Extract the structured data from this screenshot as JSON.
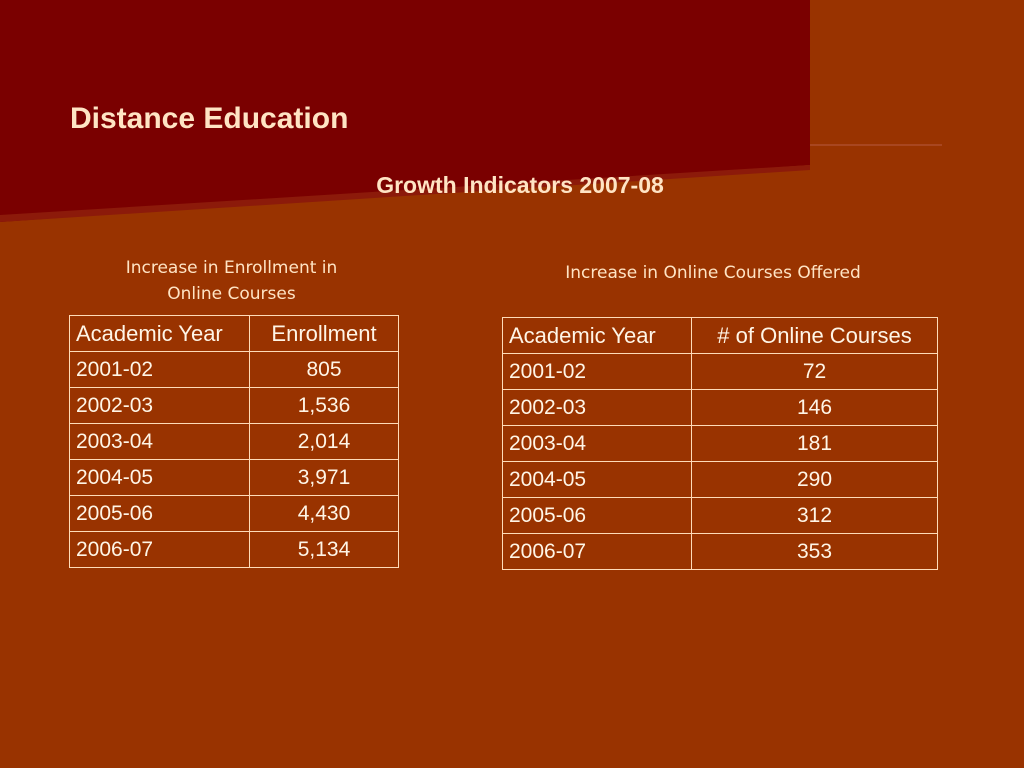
{
  "slide": {
    "title": "Distance Education",
    "subtitle": "Growth Indicators 2007-08"
  },
  "enrollment_table": {
    "caption_line1": "Increase in Enrollment in",
    "caption_line2": "Online Courses",
    "headers": [
      "Academic Year",
      "Enrollment"
    ],
    "rows": [
      [
        "2001-02",
        "805"
      ],
      [
        "2002-03",
        "1,536"
      ],
      [
        "2003-04",
        "2,014"
      ],
      [
        "2004-05",
        "3,971"
      ],
      [
        "2005-06",
        "4,430"
      ],
      [
        "2006-07",
        "5,134"
      ]
    ]
  },
  "courses_table": {
    "caption": "Increase in Online Courses Offered",
    "headers": [
      "Academic Year",
      "# of Online Courses"
    ],
    "rows": [
      [
        "2001-02",
        "72"
      ],
      [
        "2002-03",
        "146"
      ],
      [
        "2003-04",
        "181"
      ],
      [
        "2004-05",
        "290"
      ],
      [
        "2005-06",
        "312"
      ],
      [
        "2006-07",
        "353"
      ]
    ]
  },
  "colors": {
    "background": "#993300",
    "banner": "#7a0000",
    "text": "#ffe4c4",
    "table_border": "#ffdbb8"
  }
}
